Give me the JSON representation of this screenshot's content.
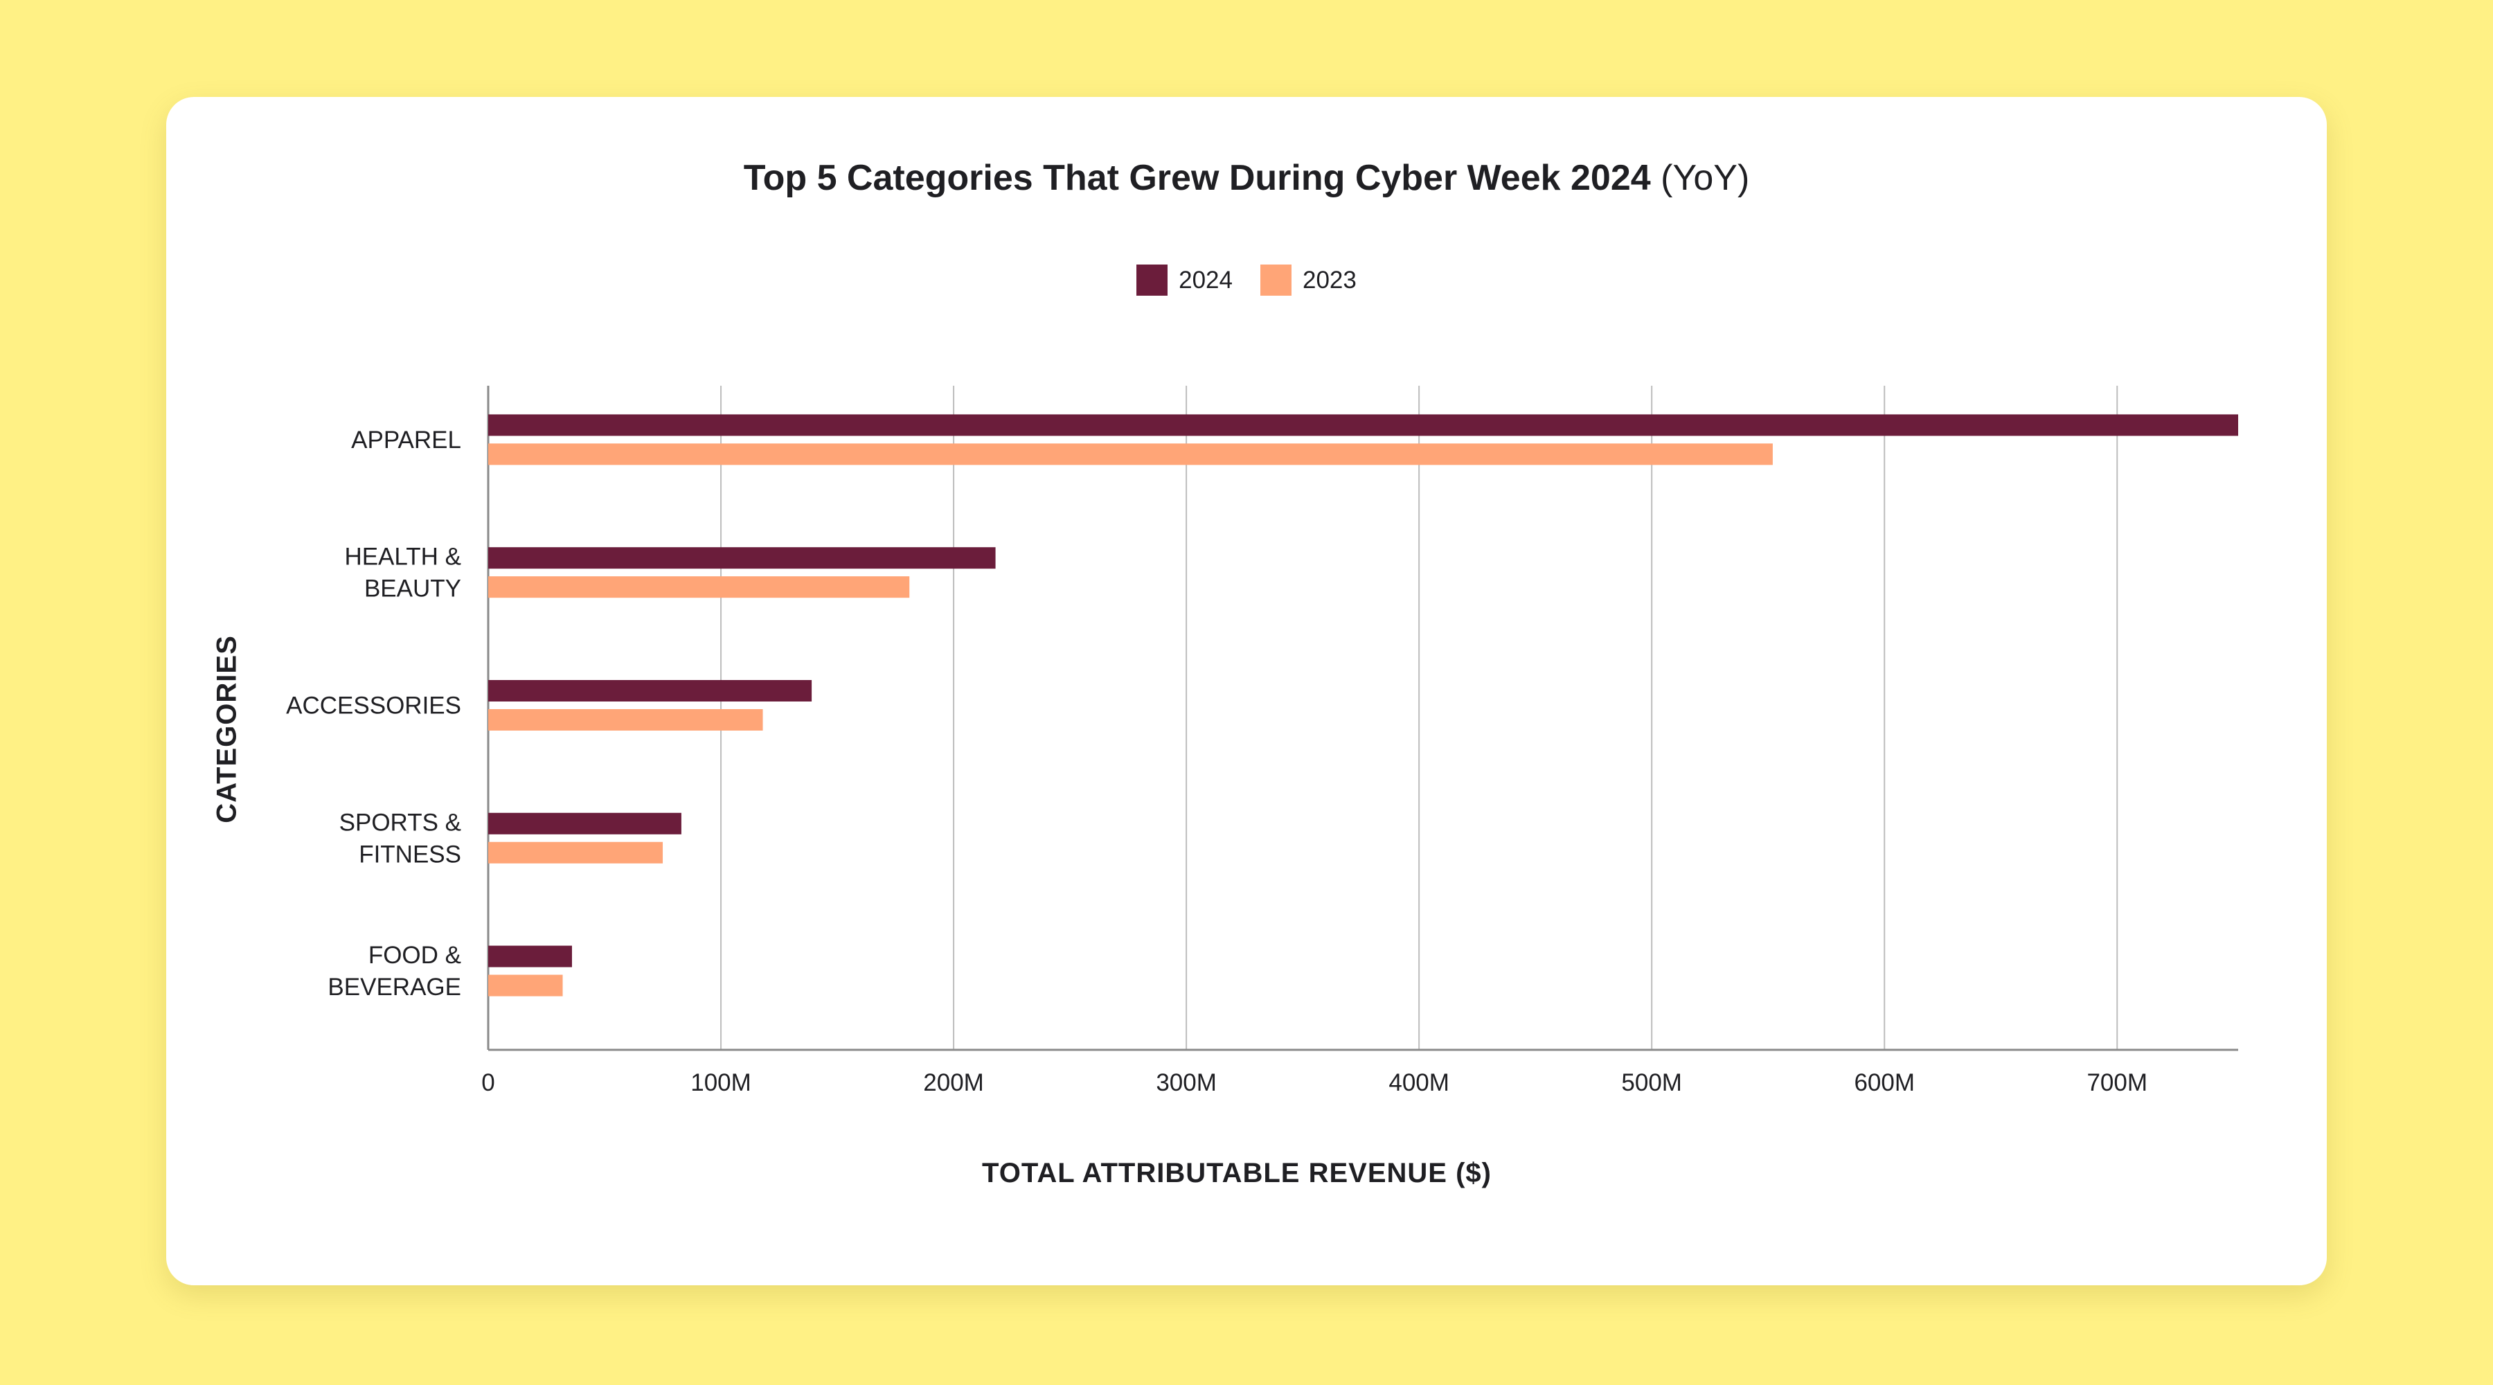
{
  "colors": {
    "background": "#FFF185",
    "card": "#FFFFFF",
    "series_2024": "#6B1D3B",
    "series_2023": "#FFA577",
    "grid": "#BDBDBD",
    "text": "#1F1F23"
  },
  "chart_data": {
    "type": "bar",
    "orientation": "horizontal",
    "title": "Top 5 Categories That Grew During Cyber Week 2024",
    "title_suffix": "(YoY)",
    "xlabel": "TOTAL ATTRIBUTABLE REVENUE ($)",
    "ylabel": "CATEGORIES",
    "categories": [
      {
        "lines": [
          "APPAREL"
        ]
      },
      {
        "lines": [
          "HEALTH &",
          "BEAUTY"
        ]
      },
      {
        "lines": [
          "ACCESSORIES"
        ]
      },
      {
        "lines": [
          "SPORTS &",
          "FITNESS"
        ]
      },
      {
        "lines": [
          "FOOD &",
          "BEVERAGE"
        ]
      }
    ],
    "series": [
      {
        "name": "2024",
        "color": "#6B1D3B",
        "values": [
          752,
          218,
          139,
          83,
          36
        ]
      },
      {
        "name": "2023",
        "color": "#FFA577",
        "values": [
          552,
          181,
          118,
          75,
          32
        ]
      }
    ],
    "xlim": [
      0,
      752
    ],
    "xticks": [
      0,
      100,
      200,
      300,
      400,
      500,
      600,
      700
    ],
    "xtick_labels": [
      "0",
      "100M",
      "200M",
      "300M",
      "400M",
      "500M",
      "600M",
      "700M"
    ],
    "grid": true,
    "legend_position": "top-center"
  }
}
